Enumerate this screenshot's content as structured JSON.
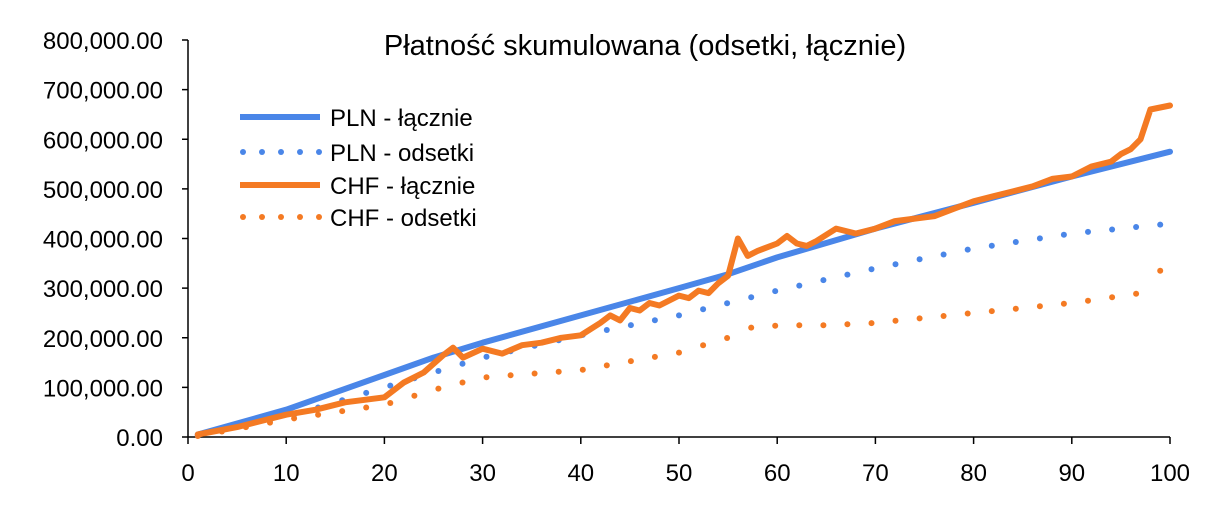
{
  "chart_data": {
    "type": "line",
    "title": "Płatność skumulowana (odsetki, łącznie)",
    "xlabel": "",
    "ylabel": "",
    "xlim": [
      0,
      100
    ],
    "ylim": [
      0,
      800000
    ],
    "x_ticks": [
      "0",
      "10",
      "20",
      "30",
      "40",
      "50",
      "60",
      "70",
      "80",
      "90",
      "100"
    ],
    "y_ticks": [
      "0.00",
      "100,000.00",
      "200,000.00",
      "300,000.00",
      "400,000.00",
      "500,000.00",
      "600,000.00",
      "700,000.00",
      "800,000.00"
    ],
    "grid": false,
    "legend_position": "top-left",
    "series": [
      {
        "name": "PLN - łącznie",
        "color": "#4a86e8",
        "style": "solid",
        "points": [
          [
            1,
            5000
          ],
          [
            10,
            55000
          ],
          [
            20,
            125000
          ],
          [
            25,
            160000
          ],
          [
            30,
            190000
          ],
          [
            40,
            245000
          ],
          [
            50,
            300000
          ],
          [
            55,
            328000
          ],
          [
            60,
            362000
          ],
          [
            70,
            420000
          ],
          [
            80,
            472000
          ],
          [
            90,
            525000
          ],
          [
            100,
            575000
          ]
        ]
      },
      {
        "name": "PLN - odsetki",
        "color": "#4a86e8",
        "style": "dotted",
        "points": [
          [
            1,
            3000
          ],
          [
            10,
            40000
          ],
          [
            20,
            100000
          ],
          [
            30,
            160000
          ],
          [
            40,
            205000
          ],
          [
            50,
            245000
          ],
          [
            60,
            295000
          ],
          [
            70,
            340000
          ],
          [
            80,
            380000
          ],
          [
            90,
            410000
          ],
          [
            100,
            430000
          ]
        ]
      },
      {
        "name": "CHF - łącznie",
        "color": "#f47a23",
        "style": "solid",
        "points": [
          [
            1,
            5000
          ],
          [
            5,
            20000
          ],
          [
            8,
            35000
          ],
          [
            10,
            45000
          ],
          [
            13,
            55000
          ],
          [
            16,
            70000
          ],
          [
            18,
            75000
          ],
          [
            20,
            80000
          ],
          [
            22,
            110000
          ],
          [
            24,
            130000
          ],
          [
            26,
            165000
          ],
          [
            27,
            180000
          ],
          [
            28,
            160000
          ],
          [
            30,
            178000
          ],
          [
            32,
            168000
          ],
          [
            34,
            185000
          ],
          [
            36,
            190000
          ],
          [
            38,
            200000
          ],
          [
            40,
            205000
          ],
          [
            42,
            230000
          ],
          [
            43,
            245000
          ],
          [
            44,
            235000
          ],
          [
            45,
            260000
          ],
          [
            46,
            255000
          ],
          [
            47,
            270000
          ],
          [
            48,
            265000
          ],
          [
            50,
            285000
          ],
          [
            51,
            280000
          ],
          [
            52,
            295000
          ],
          [
            53,
            290000
          ],
          [
            54,
            310000
          ],
          [
            55,
            325000
          ],
          [
            56,
            400000
          ],
          [
            57,
            365000
          ],
          [
            58,
            375000
          ],
          [
            60,
            390000
          ],
          [
            61,
            405000
          ],
          [
            62,
            390000
          ],
          [
            63,
            385000
          ],
          [
            64,
            395000
          ],
          [
            66,
            420000
          ],
          [
            68,
            410000
          ],
          [
            70,
            420000
          ],
          [
            72,
            435000
          ],
          [
            74,
            440000
          ],
          [
            76,
            445000
          ],
          [
            78,
            460000
          ],
          [
            80,
            475000
          ],
          [
            82,
            485000
          ],
          [
            84,
            495000
          ],
          [
            86,
            505000
          ],
          [
            88,
            520000
          ],
          [
            90,
            525000
          ],
          [
            92,
            545000
          ],
          [
            94,
            555000
          ],
          [
            95,
            570000
          ],
          [
            96,
            580000
          ],
          [
            97,
            600000
          ],
          [
            98,
            660000
          ],
          [
            100,
            668000
          ]
        ]
      },
      {
        "name": "CHF - odsetki",
        "color": "#f47a23",
        "style": "dotted",
        "points": [
          [
            1,
            2000
          ],
          [
            10,
            35000
          ],
          [
            20,
            65000
          ],
          [
            25,
            95000
          ],
          [
            30,
            120000
          ],
          [
            40,
            135000
          ],
          [
            50,
            170000
          ],
          [
            55,
            200000
          ],
          [
            56,
            232000
          ],
          [
            58,
            215000
          ],
          [
            60,
            225000
          ],
          [
            65,
            225000
          ],
          [
            70,
            230000
          ],
          [
            80,
            250000
          ],
          [
            90,
            270000
          ],
          [
            97,
            290000
          ],
          [
            98,
            325000
          ],
          [
            99,
            335000
          ]
        ]
      }
    ]
  }
}
